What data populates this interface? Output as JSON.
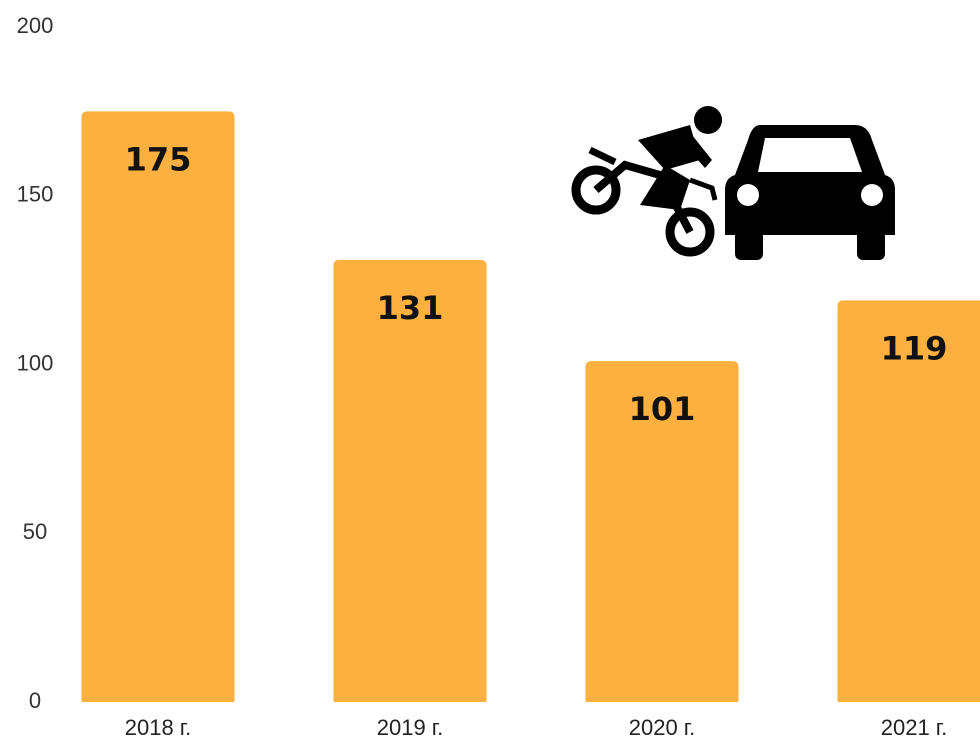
{
  "chart_data": {
    "type": "bar",
    "categories": [
      "2018 г.",
      "2019 г.",
      "2020 г.",
      "2021 г."
    ],
    "values": [
      175,
      131,
      101,
      119
    ],
    "color": "#fbb040",
    "ylim": [
      0,
      200
    ],
    "yticks": [
      0,
      50,
      100,
      150,
      200
    ],
    "grid": false
  }
}
